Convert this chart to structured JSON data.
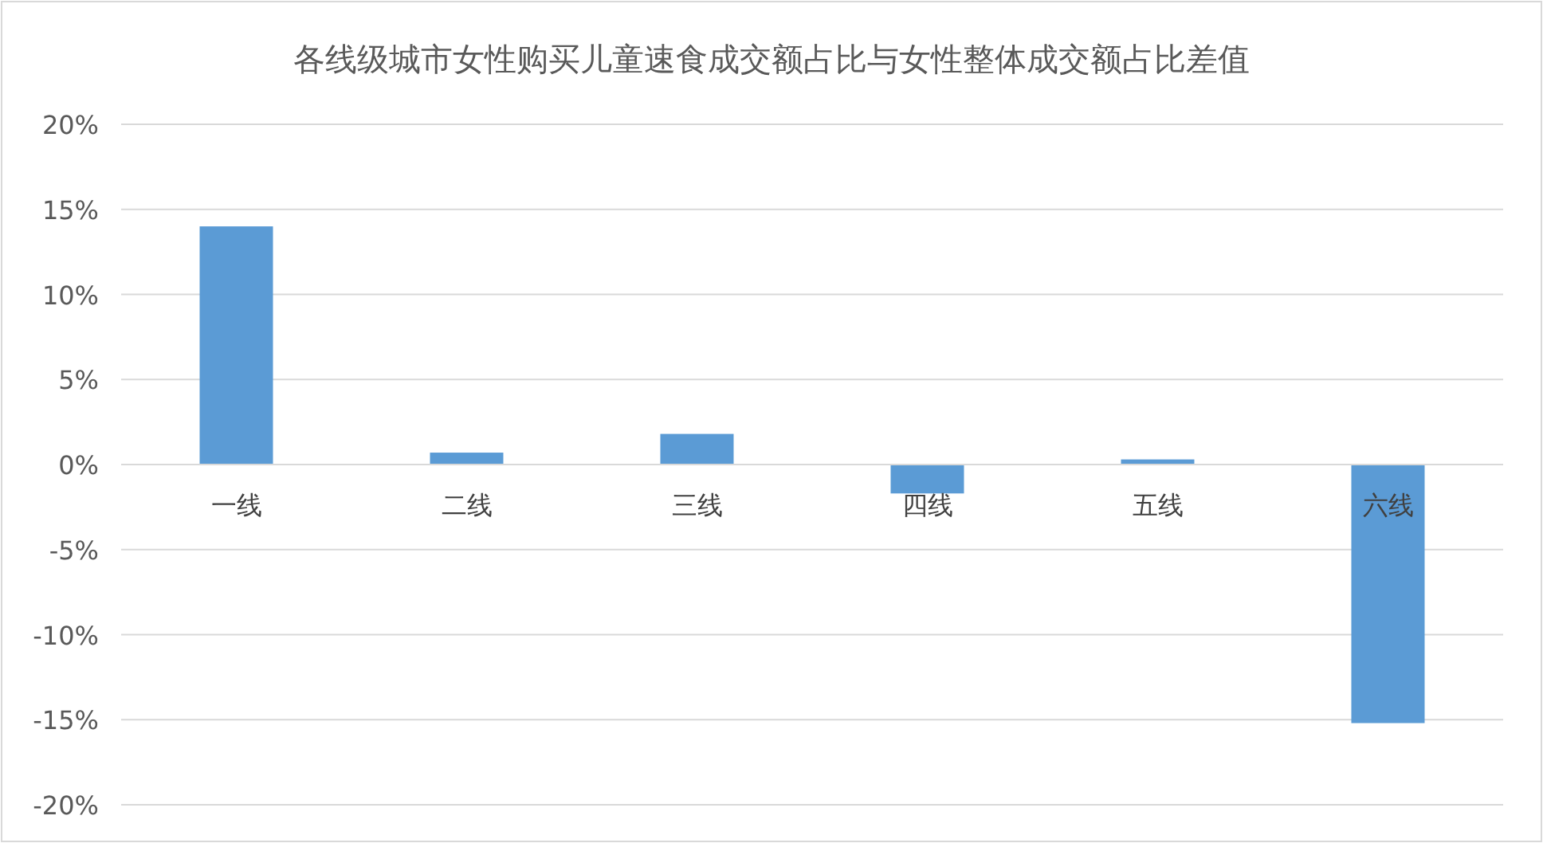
{
  "chart_data": {
    "type": "bar",
    "title": "各线级城市女性购买儿童速食成交额占比与女性整体成交额占比差值",
    "categories": [
      "一线",
      "二线",
      "三线",
      "四线",
      "五线",
      "六线"
    ],
    "values": [
      14.0,
      0.7,
      1.8,
      -1.7,
      0.3,
      -15.2
    ],
    "color": "#5b9bd5",
    "ylim": [
      -20,
      20
    ],
    "yticks": [
      {
        "value": -20,
        "label": "-20%"
      },
      {
        "value": -15,
        "label": "-15%"
      },
      {
        "value": -10,
        "label": "-10%"
      },
      {
        "value": -5,
        "label": "-5%"
      },
      {
        "value": 0,
        "label": "0%"
      },
      {
        "value": 5,
        "label": "5%"
      },
      {
        "value": 10,
        "label": "10%"
      },
      {
        "value": 15,
        "label": "15%"
      },
      {
        "value": 20,
        "label": "20%"
      }
    ],
    "grid": "y"
  }
}
